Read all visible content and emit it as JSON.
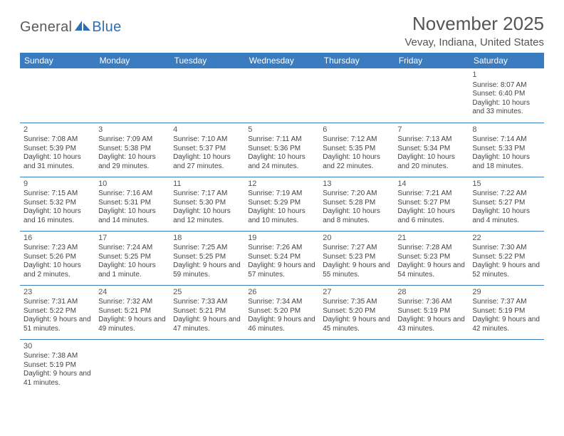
{
  "logo": {
    "word1": "General",
    "word2": "Blue"
  },
  "title": "November 2025",
  "location": "Vevay, Indiana, United States",
  "colors": {
    "header_bg": "#3a7cbf",
    "header_text": "#ffffff",
    "cell_border": "#3a7cbf",
    "text": "#444444",
    "logo_gray": "#5a5a5a",
    "logo_blue": "#2f6faf",
    "page_bg": "#ffffff"
  },
  "dow": [
    "Sunday",
    "Monday",
    "Tuesday",
    "Wednesday",
    "Thursday",
    "Friday",
    "Saturday"
  ],
  "weeks": [
    [
      null,
      null,
      null,
      null,
      null,
      null,
      {
        "n": "1",
        "sr": "Sunrise: 8:07 AM",
        "ss": "Sunset: 6:40 PM",
        "dl": "Daylight: 10 hours and 33 minutes."
      }
    ],
    [
      {
        "n": "2",
        "sr": "Sunrise: 7:08 AM",
        "ss": "Sunset: 5:39 PM",
        "dl": "Daylight: 10 hours and 31 minutes."
      },
      {
        "n": "3",
        "sr": "Sunrise: 7:09 AM",
        "ss": "Sunset: 5:38 PM",
        "dl": "Daylight: 10 hours and 29 minutes."
      },
      {
        "n": "4",
        "sr": "Sunrise: 7:10 AM",
        "ss": "Sunset: 5:37 PM",
        "dl": "Daylight: 10 hours and 27 minutes."
      },
      {
        "n": "5",
        "sr": "Sunrise: 7:11 AM",
        "ss": "Sunset: 5:36 PM",
        "dl": "Daylight: 10 hours and 24 minutes."
      },
      {
        "n": "6",
        "sr": "Sunrise: 7:12 AM",
        "ss": "Sunset: 5:35 PM",
        "dl": "Daylight: 10 hours and 22 minutes."
      },
      {
        "n": "7",
        "sr": "Sunrise: 7:13 AM",
        "ss": "Sunset: 5:34 PM",
        "dl": "Daylight: 10 hours and 20 minutes."
      },
      {
        "n": "8",
        "sr": "Sunrise: 7:14 AM",
        "ss": "Sunset: 5:33 PM",
        "dl": "Daylight: 10 hours and 18 minutes."
      }
    ],
    [
      {
        "n": "9",
        "sr": "Sunrise: 7:15 AM",
        "ss": "Sunset: 5:32 PM",
        "dl": "Daylight: 10 hours and 16 minutes."
      },
      {
        "n": "10",
        "sr": "Sunrise: 7:16 AM",
        "ss": "Sunset: 5:31 PM",
        "dl": "Daylight: 10 hours and 14 minutes."
      },
      {
        "n": "11",
        "sr": "Sunrise: 7:17 AM",
        "ss": "Sunset: 5:30 PM",
        "dl": "Daylight: 10 hours and 12 minutes."
      },
      {
        "n": "12",
        "sr": "Sunrise: 7:19 AM",
        "ss": "Sunset: 5:29 PM",
        "dl": "Daylight: 10 hours and 10 minutes."
      },
      {
        "n": "13",
        "sr": "Sunrise: 7:20 AM",
        "ss": "Sunset: 5:28 PM",
        "dl": "Daylight: 10 hours and 8 minutes."
      },
      {
        "n": "14",
        "sr": "Sunrise: 7:21 AM",
        "ss": "Sunset: 5:27 PM",
        "dl": "Daylight: 10 hours and 6 minutes."
      },
      {
        "n": "15",
        "sr": "Sunrise: 7:22 AM",
        "ss": "Sunset: 5:27 PM",
        "dl": "Daylight: 10 hours and 4 minutes."
      }
    ],
    [
      {
        "n": "16",
        "sr": "Sunrise: 7:23 AM",
        "ss": "Sunset: 5:26 PM",
        "dl": "Daylight: 10 hours and 2 minutes."
      },
      {
        "n": "17",
        "sr": "Sunrise: 7:24 AM",
        "ss": "Sunset: 5:25 PM",
        "dl": "Daylight: 10 hours and 1 minute."
      },
      {
        "n": "18",
        "sr": "Sunrise: 7:25 AM",
        "ss": "Sunset: 5:25 PM",
        "dl": "Daylight: 9 hours and 59 minutes."
      },
      {
        "n": "19",
        "sr": "Sunrise: 7:26 AM",
        "ss": "Sunset: 5:24 PM",
        "dl": "Daylight: 9 hours and 57 minutes."
      },
      {
        "n": "20",
        "sr": "Sunrise: 7:27 AM",
        "ss": "Sunset: 5:23 PM",
        "dl": "Daylight: 9 hours and 55 minutes."
      },
      {
        "n": "21",
        "sr": "Sunrise: 7:28 AM",
        "ss": "Sunset: 5:23 PM",
        "dl": "Daylight: 9 hours and 54 minutes."
      },
      {
        "n": "22",
        "sr": "Sunrise: 7:30 AM",
        "ss": "Sunset: 5:22 PM",
        "dl": "Daylight: 9 hours and 52 minutes."
      }
    ],
    [
      {
        "n": "23",
        "sr": "Sunrise: 7:31 AM",
        "ss": "Sunset: 5:22 PM",
        "dl": "Daylight: 9 hours and 51 minutes."
      },
      {
        "n": "24",
        "sr": "Sunrise: 7:32 AM",
        "ss": "Sunset: 5:21 PM",
        "dl": "Daylight: 9 hours and 49 minutes."
      },
      {
        "n": "25",
        "sr": "Sunrise: 7:33 AM",
        "ss": "Sunset: 5:21 PM",
        "dl": "Daylight: 9 hours and 47 minutes."
      },
      {
        "n": "26",
        "sr": "Sunrise: 7:34 AM",
        "ss": "Sunset: 5:20 PM",
        "dl": "Daylight: 9 hours and 46 minutes."
      },
      {
        "n": "27",
        "sr": "Sunrise: 7:35 AM",
        "ss": "Sunset: 5:20 PM",
        "dl": "Daylight: 9 hours and 45 minutes."
      },
      {
        "n": "28",
        "sr": "Sunrise: 7:36 AM",
        "ss": "Sunset: 5:19 PM",
        "dl": "Daylight: 9 hours and 43 minutes."
      },
      {
        "n": "29",
        "sr": "Sunrise: 7:37 AM",
        "ss": "Sunset: 5:19 PM",
        "dl": "Daylight: 9 hours and 42 minutes."
      }
    ],
    [
      {
        "n": "30",
        "sr": "Sunrise: 7:38 AM",
        "ss": "Sunset: 5:19 PM",
        "dl": "Daylight: 9 hours and 41 minutes."
      },
      null,
      null,
      null,
      null,
      null,
      null
    ]
  ]
}
